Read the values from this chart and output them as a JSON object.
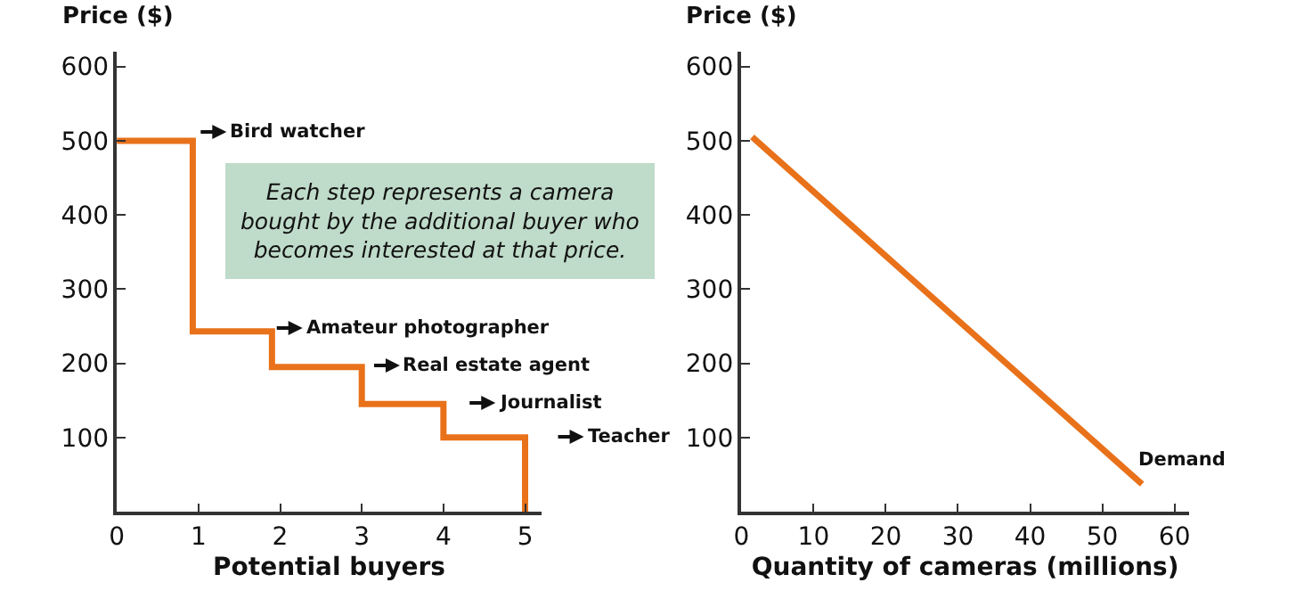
{
  "chart_data": [
    {
      "type": "step",
      "ylabel": "Price ($)",
      "xlabel": "Potential buyers",
      "x": [
        0,
        0.93,
        1.9,
        3,
        4,
        5
      ],
      "series": [
        {
          "color": "#e8711a",
          "values": [
            500,
            243,
            195,
            145,
            100,
            0
          ]
        }
      ],
      "xlim": [
        0,
        5.2
      ],
      "xticks": [
        0,
        1,
        2,
        3,
        4,
        5
      ],
      "ylim": [
        0,
        620
      ],
      "yticks": [
        100,
        200,
        300,
        400,
        500,
        600
      ],
      "marker": "none",
      "line_style": "solid",
      "annotations": [
        "Bird watcher",
        "Amateur photographer",
        "Real estate agent",
        "Journalist",
        "Teacher",
        "Each step represents a camera\nbought by the additional buyer who\nbecomes interested at that price."
      ]
    },
    {
      "type": "line",
      "ylabel": "Price ($)",
      "xlabel": "Quantity of cameras (millions)",
      "x": [
        1.5,
        55.5
      ],
      "series": [
        {
          "color": "#e8711a",
          "values": [
            505,
            37
          ]
        }
      ],
      "xlim": [
        0,
        62
      ],
      "xticks": [
        0,
        10,
        20,
        30,
        40,
        50,
        60
      ],
      "ylim": [
        0,
        620
      ],
      "yticks": [
        100,
        200,
        300,
        400,
        500,
        600
      ],
      "marker": "none",
      "line_style": "solid",
      "annotations": [
        "Demand"
      ]
    }
  ]
}
